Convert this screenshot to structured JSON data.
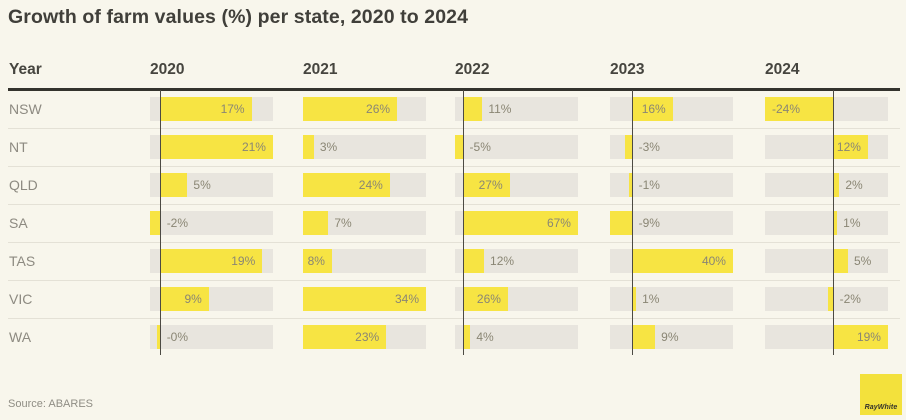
{
  "title": "Growth of farm values (%) per state, 2020 to 2024",
  "source": "Source: ABARES",
  "logo_text": "RayWhite",
  "header": {
    "year_label": "Year"
  },
  "chart_data": {
    "type": "bar",
    "orientation": "horizontal",
    "title": "Growth of farm values (%) per state, 2020 to 2024",
    "categories": [
      "2020",
      "2021",
      "2022",
      "2023",
      "2024"
    ],
    "row_header": "Year",
    "rows": [
      "NSW",
      "NT",
      "QLD",
      "SA",
      "TAS",
      "VIC",
      "WA"
    ],
    "series": [
      {
        "name": "NSW",
        "values": [
          17,
          26,
          11,
          16,
          -24
        ],
        "labels": [
          "17%",
          "26%",
          "11%",
          "16%",
          "-24%"
        ]
      },
      {
        "name": "NT",
        "values": [
          21,
          3,
          -5,
          -3,
          12
        ],
        "labels": [
          "21%",
          "3%",
          "-5%",
          "-3%",
          "12%"
        ]
      },
      {
        "name": "QLD",
        "values": [
          5,
          24,
          27,
          -1,
          2
        ],
        "labels": [
          "5%",
          "24%",
          "27%",
          "-1%",
          "2%"
        ]
      },
      {
        "name": "SA",
        "values": [
          -2,
          7,
          67,
          -9,
          1
        ],
        "labels": [
          "-2%",
          "7%",
          "67%",
          "-9%",
          "1%"
        ]
      },
      {
        "name": "TAS",
        "values": [
          19,
          8,
          12,
          40,
          5
        ],
        "labels": [
          "19%",
          "8%",
          "12%",
          "40%",
          "5%"
        ]
      },
      {
        "name": "VIC",
        "values": [
          9,
          34,
          26,
          1,
          -2
        ],
        "labels": [
          "9%",
          "34%",
          "26%",
          "1%",
          "-2%"
        ]
      },
      {
        "name": "WA",
        "values": [
          0,
          23,
          4,
          9,
          19
        ],
        "labels": [
          "-0%",
          "23%",
          "4%",
          "9%",
          "19%"
        ]
      }
    ],
    "axis_note": "each year column is scaled independently from min(0,min) to max(0,max); a dark vertical zero line is drawn where the column has negative values",
    "legend": "none",
    "grid": "off"
  },
  "colors": {
    "background": "#f8f6ec",
    "bar_yellow": "#f7e443",
    "track_gray": "#e8e5de",
    "text_dark": "#403f3a",
    "header_text": "#46453f",
    "row_label": "#8d8a81",
    "value_label": "#8a8674",
    "rule_dark": "#34332d",
    "zero_line": "#4c4a43",
    "separator": "#e4e1d6",
    "source_text": "#8f8d84",
    "logo_bg": "#f3e13c",
    "logo_text": "#32312b"
  }
}
